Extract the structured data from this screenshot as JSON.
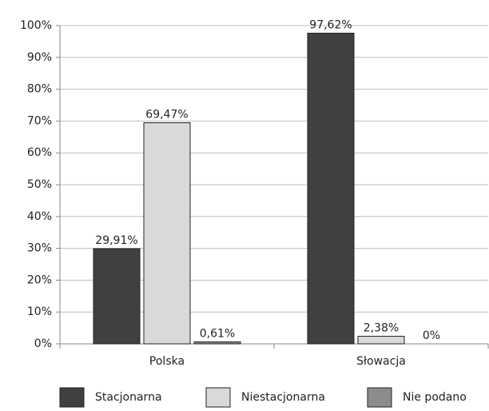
{
  "chart_data": {
    "type": "bar",
    "categories": [
      "Polska",
      "Słowacja"
    ],
    "series": [
      {
        "name": "Stacjonarna",
        "color": "#404040",
        "values": [
          29.91,
          97.62
        ],
        "value_labels": [
          "29,91%",
          "97,62%"
        ]
      },
      {
        "name": "Niestacjonarna",
        "color": "#d9d9d9",
        "values": [
          69.47,
          2.38
        ],
        "value_labels": [
          "69,47%",
          "2,38%"
        ]
      },
      {
        "name": "Nie podano",
        "color": "#8c8c8c",
        "values": [
          0.61,
          0
        ],
        "value_labels": [
          "0,61%",
          "0%"
        ]
      }
    ],
    "ylim": [
      0,
      100
    ],
    "yticks": [
      {
        "value": 0,
        "label": "0%"
      },
      {
        "value": 10,
        "label": "10%"
      },
      {
        "value": 20,
        "label": "20%"
      },
      {
        "value": 30,
        "label": "30%"
      },
      {
        "value": 40,
        "label": "40%"
      },
      {
        "value": 50,
        "label": "50%"
      },
      {
        "value": 60,
        "label": "60%"
      },
      {
        "value": 70,
        "label": "70%"
      },
      {
        "value": 80,
        "label": "80%"
      },
      {
        "value": 90,
        "label": "90%"
      },
      {
        "value": 100,
        "label": "100%"
      }
    ],
    "grid": true,
    "legend": "bottom"
  }
}
